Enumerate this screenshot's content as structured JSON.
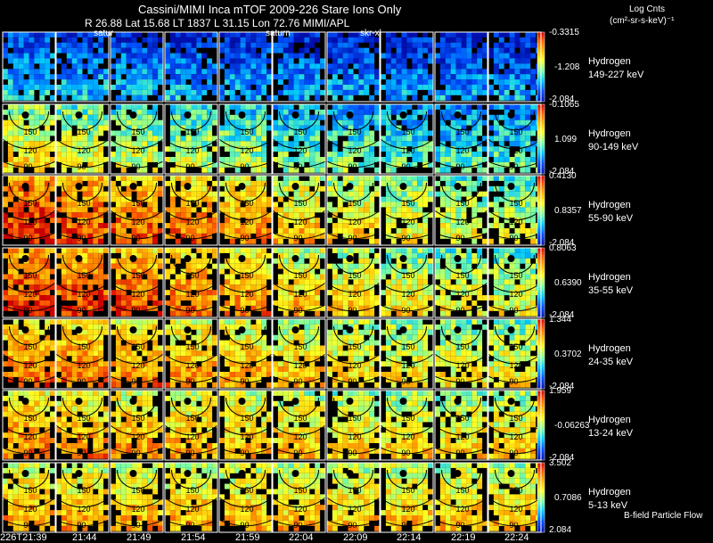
{
  "header": {
    "title": "Cassini/MIMI Inca mTOF 2009-226 Stare Ions Only",
    "position_line": "R 26.88 Lat 15.68 LT 1837 L 31.15 Lon 72.76 MIMI/APL",
    "target_markers": [
      "satur",
      "saturn",
      "skr-xl"
    ]
  },
  "units": {
    "line1": "Log Cnts",
    "line2": "(cm²-sr-s-keV)⁻¹"
  },
  "footer": {
    "flow_label": "B-field Particle Flow",
    "time_start": "226T21:39"
  },
  "chart_data": {
    "type": "heatmap",
    "panel_grid": "7 energy channels x 10 time frames",
    "species": "Hydrogen",
    "contour_labels": [
      "150",
      "120",
      "90"
    ],
    "times": [
      "21:39",
      "21:44",
      "21:49",
      "21:54",
      "21:59",
      "22:04",
      "22:09",
      "22:14",
      "22:19",
      "22:24"
    ],
    "channels": [
      {
        "species": "Hydrogen",
        "energy": "149-227 keV",
        "cb_max": "-0.3315",
        "cb_mid": "-1.208",
        "cb_min": "-2.084",
        "intensity": [
          0.2,
          0.18,
          0.17,
          0.16,
          0.15,
          0.14,
          0.14,
          0.13,
          0.13,
          0.13
        ]
      },
      {
        "species": "Hydrogen",
        "energy": "90-149 keV",
        "cb_max": "-0.1065",
        "cb_mid": "1.099",
        "cb_min": "-2.084",
        "intensity": [
          0.55,
          0.5,
          0.46,
          0.43,
          0.4,
          0.36,
          0.34,
          0.32,
          0.3,
          0.3
        ]
      },
      {
        "species": "Hydrogen",
        "energy": "55-90 keV",
        "cb_max": "0.4130",
        "cb_mid": "0.8357",
        "cb_min": "-2.084",
        "intensity": [
          0.86,
          0.8,
          0.76,
          0.73,
          0.68,
          0.62,
          0.57,
          0.52,
          0.49,
          0.46
        ]
      },
      {
        "species": "Hydrogen",
        "energy": "35-55 keV",
        "cb_max": "0.8063",
        "cb_mid": "0.6390",
        "cb_min": "-2.084",
        "intensity": [
          0.84,
          0.8,
          0.77,
          0.73,
          0.68,
          0.62,
          0.58,
          0.54,
          0.51,
          0.48
        ]
      },
      {
        "species": "Hydrogen",
        "energy": "24-35 keV",
        "cb_max": "1.344",
        "cb_mid": "0.3702",
        "cb_min": "-2.084",
        "intensity": [
          0.74,
          0.72,
          0.7,
          0.67,
          0.64,
          0.6,
          0.57,
          0.55,
          0.53,
          0.52
        ]
      },
      {
        "species": "Hydrogen",
        "energy": "13-24 keV",
        "cb_max": "1.959",
        "cb_mid": "-0.06263",
        "cb_min": "-2.084",
        "intensity": [
          0.7,
          0.68,
          0.66,
          0.64,
          0.62,
          0.6,
          0.58,
          0.57,
          0.56,
          0.56
        ]
      },
      {
        "species": "Hydrogen",
        "energy": "5-13 keV",
        "cb_max": "3.502",
        "cb_mid": "0.7086",
        "cb_min": "2.084",
        "intensity": [
          0.66,
          0.64,
          0.63,
          0.62,
          0.61,
          0.61,
          0.6,
          0.6,
          0.6,
          0.6
        ]
      }
    ]
  }
}
